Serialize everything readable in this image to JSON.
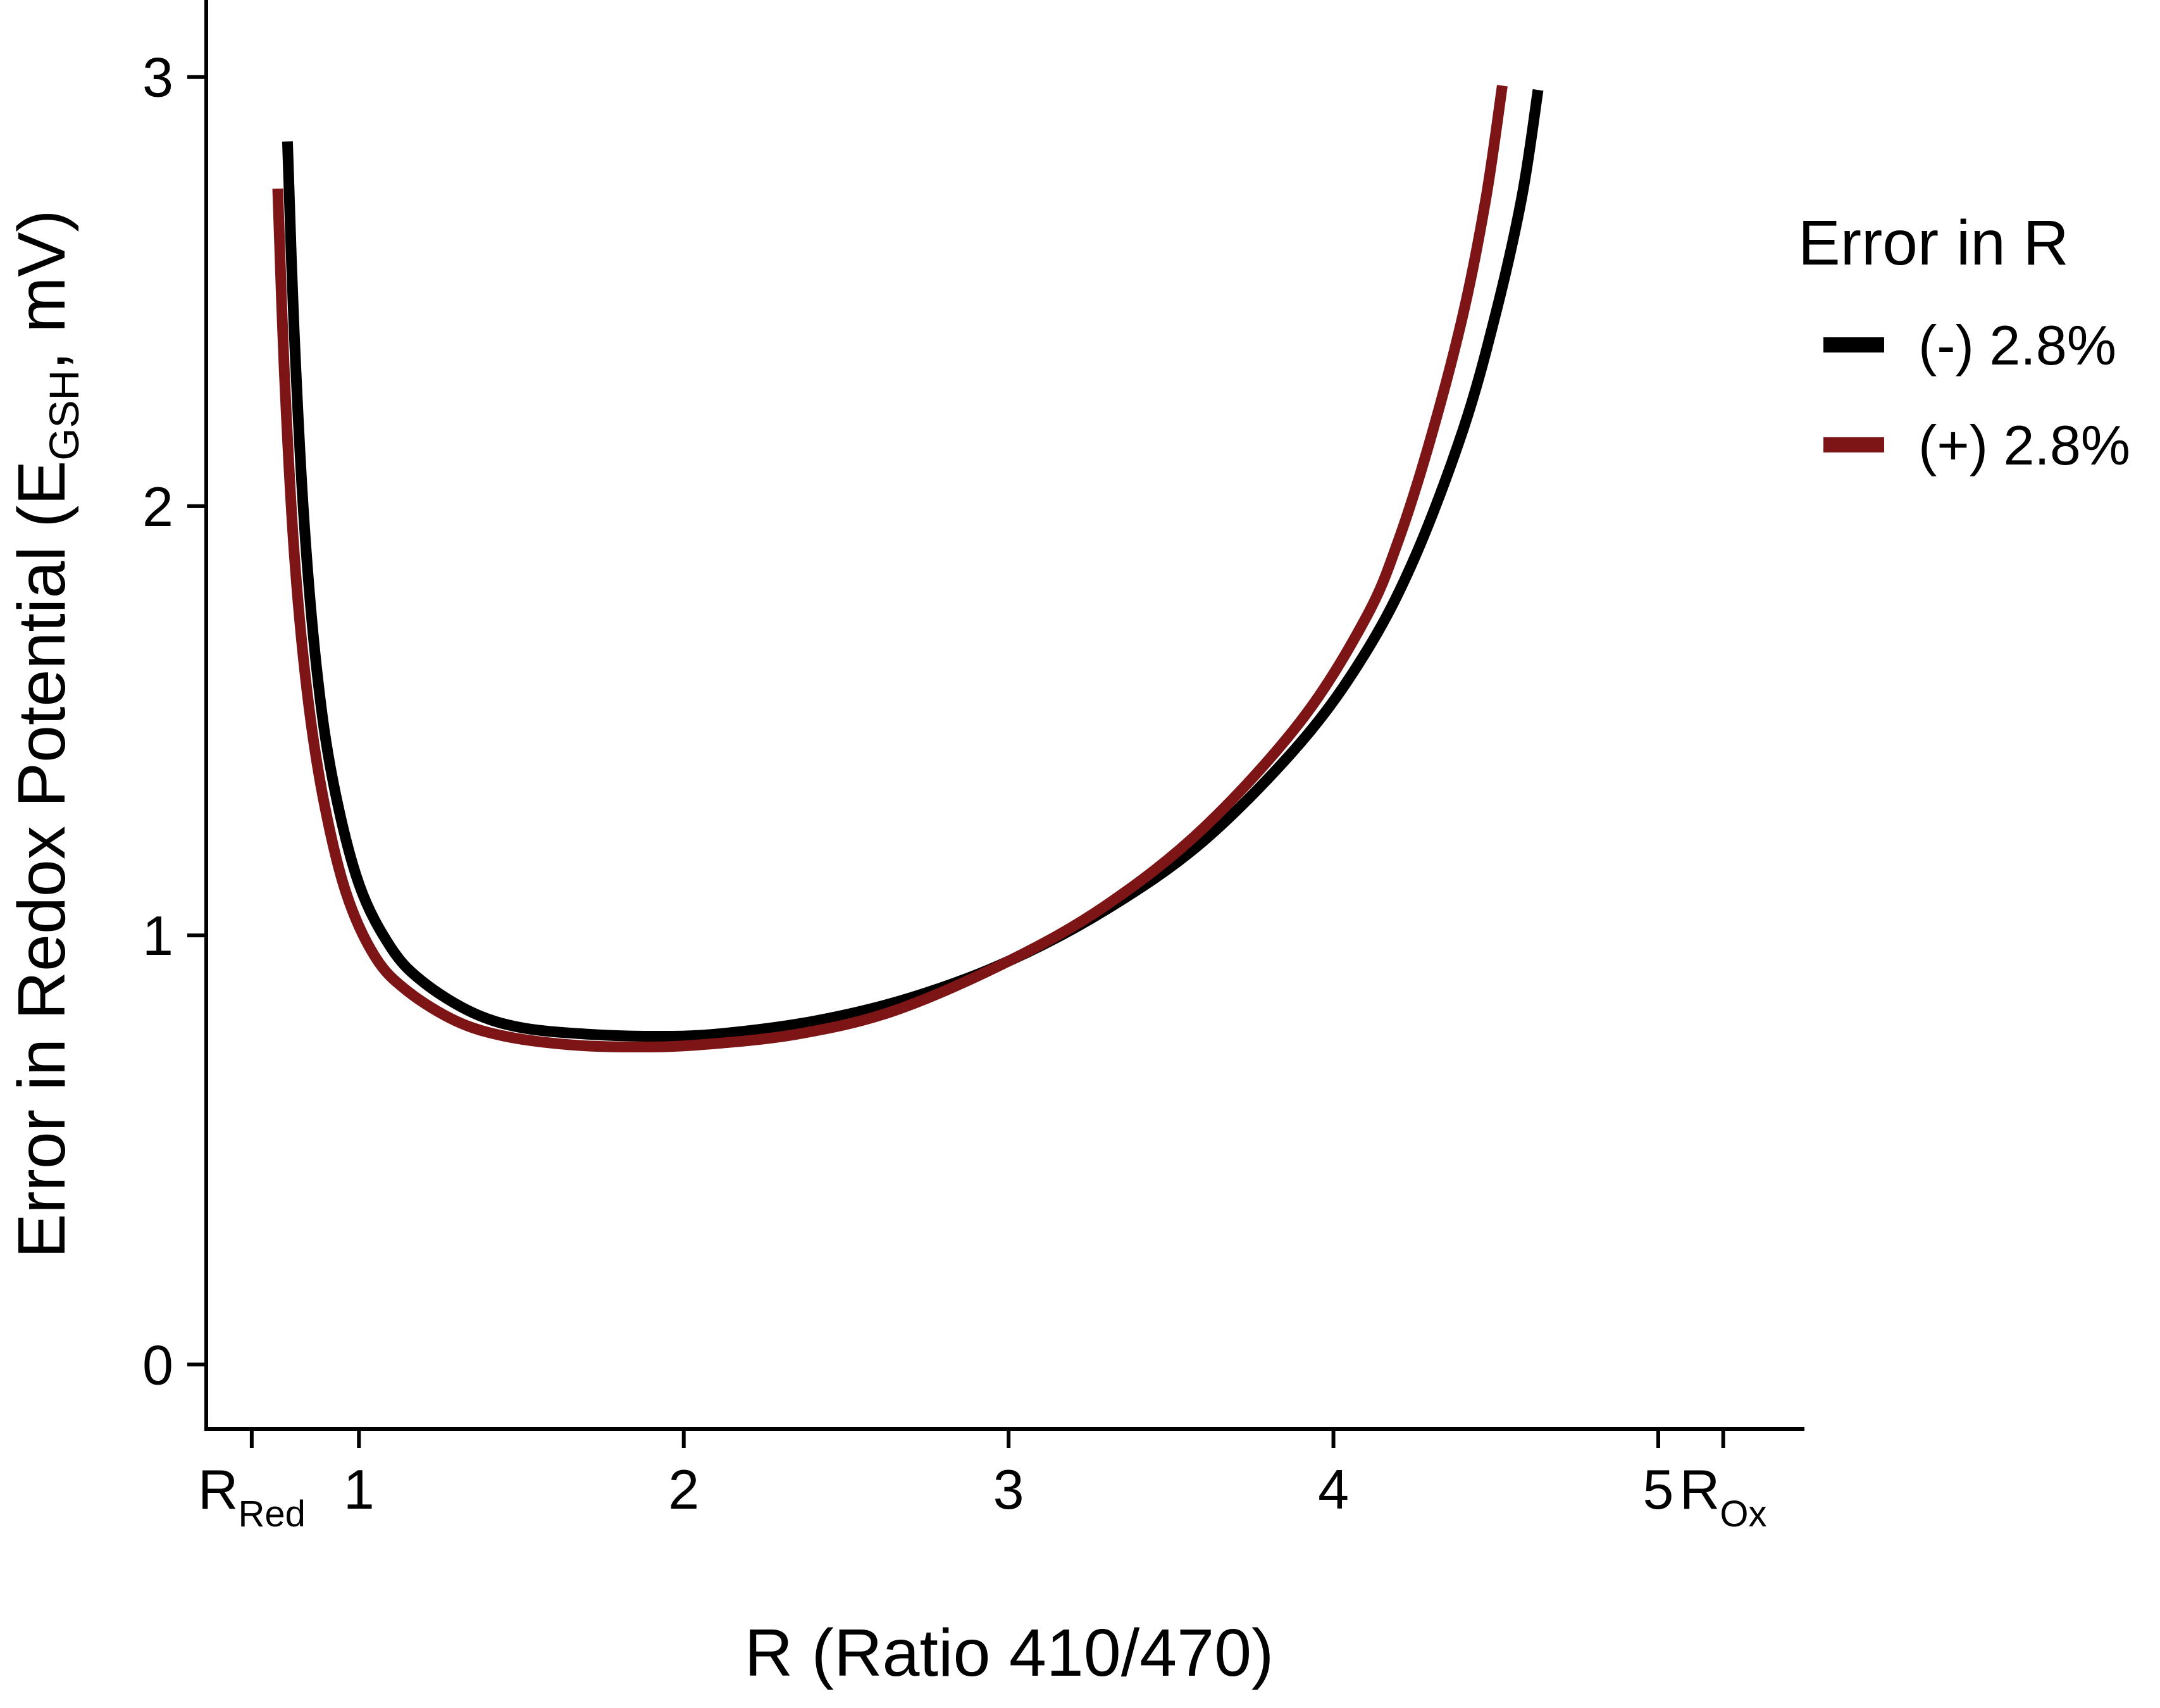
{
  "chart_data": {
    "type": "line",
    "title": "",
    "xlabel": "R (Ratio 410/470)",
    "ylabel": {
      "prefix": "Error in Redox Potential (E",
      "subscript": "GSH",
      "suffix": ", mV)"
    },
    "xlim": [
      0.53,
      5.45
    ],
    "ylim": [
      -0.15,
      3.15
    ],
    "grid": false,
    "x_ticks": [
      {
        "value": 0.67,
        "main": "R",
        "sub": "Red"
      },
      {
        "value": 1,
        "main": "1",
        "sub": ""
      },
      {
        "value": 2,
        "main": "2",
        "sub": ""
      },
      {
        "value": 3,
        "main": "3",
        "sub": ""
      },
      {
        "value": 4,
        "main": "4",
        "sub": ""
      },
      {
        "value": 5,
        "main": "5",
        "sub": ""
      },
      {
        "value": 5.2,
        "main": "R",
        "sub": "Ox"
      }
    ],
    "y_ticks": [
      {
        "value": 0,
        "label": "0"
      },
      {
        "value": 1,
        "label": "1"
      },
      {
        "value": 2,
        "label": "2"
      },
      {
        "value": 3,
        "label": "3"
      }
    ],
    "legend": {
      "title": "Error in R",
      "position": "right"
    },
    "series": [
      {
        "name": "(-) 2.8%",
        "color": "#000000",
        "x": [
          0.78,
          0.8,
          0.83,
          0.87,
          0.92,
          1.0,
          1.1,
          1.2,
          1.35,
          1.5,
          1.7,
          1.9,
          2.1,
          2.4,
          2.7,
          3.0,
          3.3,
          3.6,
          3.9,
          4.1,
          4.25,
          4.4,
          4.5,
          4.58,
          4.63
        ],
        "y": [
          2.85,
          2.42,
          1.98,
          1.62,
          1.36,
          1.12,
          0.97,
          0.89,
          0.82,
          0.785,
          0.77,
          0.765,
          0.77,
          0.8,
          0.855,
          0.94,
          1.06,
          1.22,
          1.45,
          1.66,
          1.88,
          2.18,
          2.45,
          2.72,
          2.97
        ]
      },
      {
        "name": "(+) 2.8%",
        "color": "#7d1416",
        "x": [
          0.75,
          0.77,
          0.8,
          0.84,
          0.89,
          0.96,
          1.05,
          1.15,
          1.3,
          1.45,
          1.65,
          1.85,
          2.05,
          2.35,
          2.65,
          3.0,
          3.3,
          3.6,
          3.9,
          4.1,
          4.2,
          4.3,
          4.4,
          4.47,
          4.52
        ],
        "y": [
          2.74,
          2.32,
          1.9,
          1.57,
          1.32,
          1.1,
          0.95,
          0.87,
          0.8,
          0.765,
          0.745,
          0.74,
          0.745,
          0.77,
          0.825,
          0.94,
          1.07,
          1.25,
          1.5,
          1.74,
          1.92,
          2.16,
          2.45,
          2.72,
          2.98
        ]
      }
    ]
  }
}
